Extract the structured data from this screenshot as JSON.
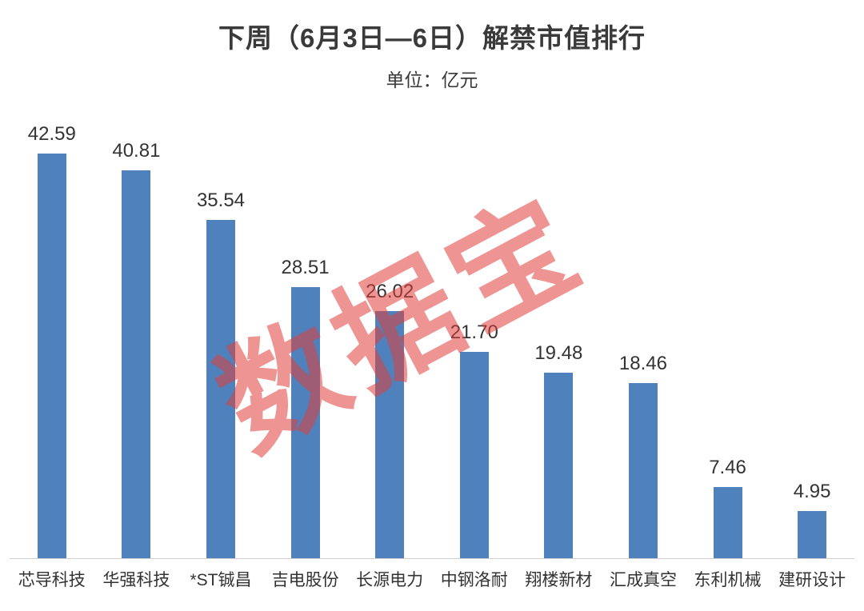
{
  "chart": {
    "title": "下周（6月3日—6日）解禁市值排行",
    "subtitle": "单位：亿元",
    "watermark": "数据宝"
  },
  "chart_data": {
    "type": "bar",
    "title": "下周（6月3日—6日）解禁市值排行",
    "subtitle": "单位：亿元",
    "categories": [
      "芯导科技",
      "华强科技",
      "*ST铖昌",
      "吉电股份",
      "长源电力",
      "中钢洛耐",
      "翔楼新材",
      "汇成真空",
      "东利机械",
      "建研设计"
    ],
    "values": [
      42.59,
      40.81,
      35.54,
      28.51,
      26.02,
      21.7,
      19.48,
      18.46,
      7.46,
      4.95
    ],
    "value_labels": [
      "42.59",
      "40.81",
      "35.54",
      "28.51",
      "26.02",
      "21.70",
      "19.48",
      "18.46",
      "7.46",
      "4.95"
    ],
    "xlabel": "",
    "ylabel": "单位：亿元",
    "ylim": [
      0,
      45
    ],
    "grid": false,
    "legend": false,
    "bar_color": "#4F81BD",
    "axis_line_color": "#d0d0d0",
    "watermark_text": "数据宝",
    "watermark_color": "#E03E3A"
  }
}
